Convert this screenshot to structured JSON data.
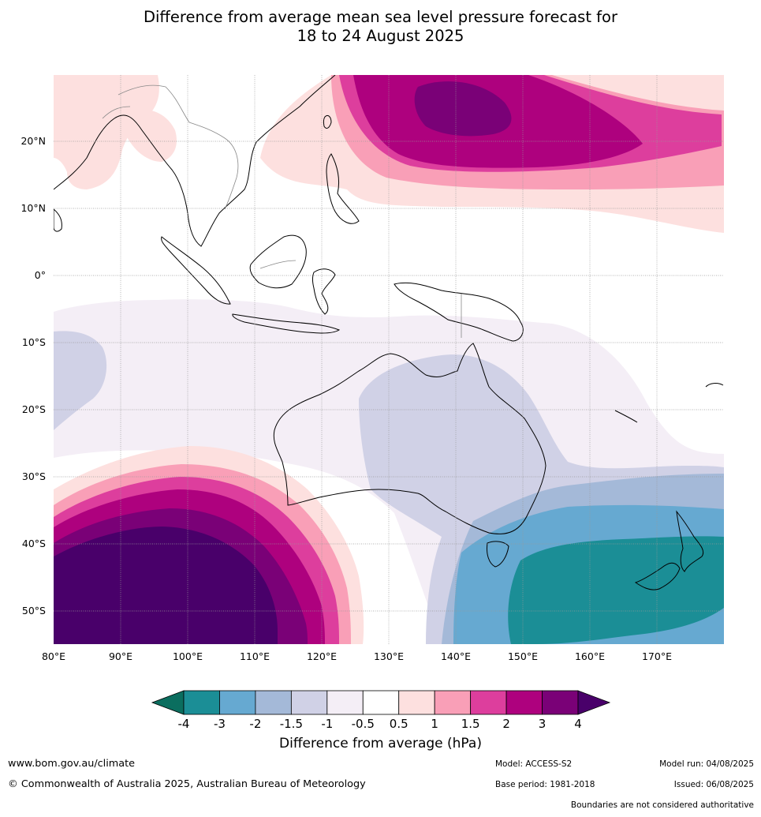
{
  "title": {
    "line1": "Difference from average mean sea level pressure forecast for",
    "line2": "18 to 24 August 2025"
  },
  "map": {
    "lon_ticks": [
      "80°E",
      "90°E",
      "100°E",
      "110°E",
      "120°E",
      "130°E",
      "140°E",
      "150°E",
      "160°E",
      "170°E"
    ],
    "lat_ticks": [
      "20°N",
      "10°N",
      "0°",
      "10°S",
      "20°S",
      "30°S",
      "40°S",
      "50°S"
    ],
    "extent": {
      "lon": [
        80,
        180
      ],
      "lat": [
        -55,
        30
      ]
    },
    "gridlines": true
  },
  "colorbar": {
    "title": "Difference from average (hPa)",
    "labels": [
      "-4",
      "-3",
      "-2",
      "-1.5",
      "-1",
      "-0.5",
      "0.5",
      "1",
      "1.5",
      "2",
      "3",
      "4"
    ],
    "colors": {
      "below": "#0b6e5f",
      "bins": [
        "#1b8e96",
        "#66a9d1",
        "#a4b9d8",
        "#d0d1e6",
        "#f4eef6",
        "#ffffff",
        "#fde0df",
        "#f99fb7",
        "#dd3e9d",
        "#ae017e",
        "#7a0177"
      ],
      "above": "#49006a"
    }
  },
  "footer": {
    "url": "www.bom.gov.au/climate",
    "copyright": "© Commonwealth of Australia 2025, Australian Bureau of Meteorology",
    "model": "Model: ACCESS-S2",
    "base_period": "Base period: 1981-2018",
    "model_run": "Model run: 04/08/2025",
    "issued": "Issued: 06/08/2025",
    "disclaimer": "Boundaries are not considered authoritative"
  }
}
